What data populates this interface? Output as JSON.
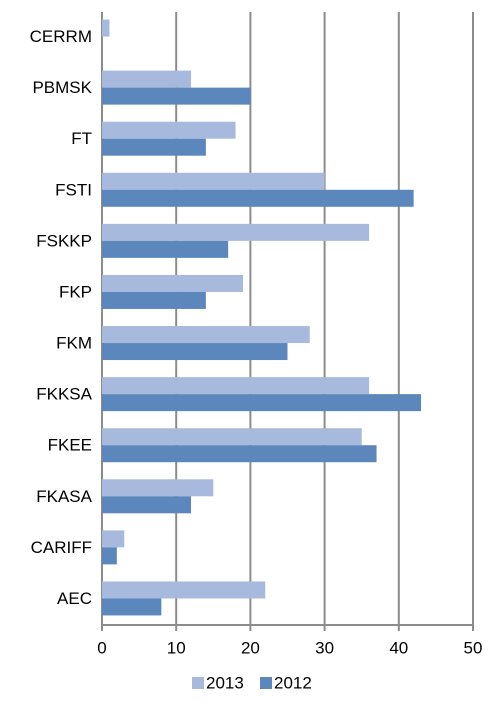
{
  "chart_data": {
    "type": "hbar",
    "categories": [
      "CERRM",
      "PBMSK",
      "FT",
      "FSTI",
      "FSKKP",
      "FKP",
      "FKM",
      "FKKSA",
      "FKEE",
      "FKASA",
      "CARIFF",
      "AEC"
    ],
    "series": [
      {
        "name": "2013",
        "color": "#a7b9dd",
        "values": [
          1,
          12,
          18,
          30,
          36,
          19,
          28,
          36,
          35,
          15,
          3,
          22
        ]
      },
      {
        "name": "2012",
        "color": "#5b87bd",
        "values": [
          0,
          20,
          14,
          42,
          17,
          14,
          25,
          43,
          37,
          12,
          2,
          8
        ]
      }
    ],
    "xlim": [
      0,
      50
    ],
    "xticks": [
      0,
      10,
      20,
      30,
      40,
      50
    ],
    "grid": true,
    "legend": "bottom"
  }
}
